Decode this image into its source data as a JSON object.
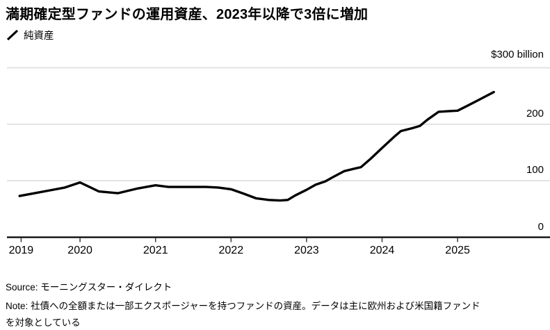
{
  "title": "満期確定型ファンドの運用資産、2023年以降で3倍に増加",
  "legend": {
    "items": [
      {
        "label": "純資産",
        "icon": "diagonal-line",
        "color": "#000000"
      }
    ]
  },
  "chart_data": {
    "type": "line",
    "title": "満期確定型ファンドの運用資産、2023年以降で3倍に増加",
    "ylabel": "$300 billion",
    "ylim": [
      0,
      300
    ],
    "grid": "horizontal",
    "legend_position": "top-left",
    "colors": {
      "line": "#000000",
      "grid": "#e3e3e3",
      "axis": "#000000",
      "tick": "#3a3a3a"
    },
    "y_ticks": [
      {
        "label": "0",
        "value": 0
      },
      {
        "label": "100",
        "value": 100
      },
      {
        "label": "200",
        "value": 200
      },
      {
        "label": "$300 billion",
        "value": 300
      }
    ],
    "x_ticks": [
      {
        "label": "2019",
        "year": 2019.22
      },
      {
        "label": "2020",
        "year": 2020
      },
      {
        "label": "2021",
        "year": 2021
      },
      {
        "label": "2022",
        "year": 2022
      },
      {
        "label": "2023",
        "year": 2023
      },
      {
        "label": "2024",
        "year": 2024
      },
      {
        "label": "2025",
        "year": 2025
      }
    ],
    "series": [
      {
        "name": "純資産",
        "unit": "$ billion",
        "points": [
          [
            2019.2,
            73
          ],
          [
            2019.4,
            78
          ],
          [
            2019.6,
            83
          ],
          [
            2019.8,
            88
          ],
          [
            2020.0,
            97
          ],
          [
            2020.25,
            81
          ],
          [
            2020.5,
            78
          ],
          [
            2020.75,
            86
          ],
          [
            2021.0,
            92
          ],
          [
            2021.17,
            89
          ],
          [
            2021.33,
            89
          ],
          [
            2021.5,
            89
          ],
          [
            2021.67,
            89
          ],
          [
            2021.83,
            88
          ],
          [
            2022.0,
            85
          ],
          [
            2022.17,
            77
          ],
          [
            2022.33,
            69
          ],
          [
            2022.5,
            66
          ],
          [
            2022.65,
            65
          ],
          [
            2022.75,
            66
          ],
          [
            2022.85,
            74
          ],
          [
            2023.0,
            84
          ],
          [
            2023.12,
            93
          ],
          [
            2023.25,
            99
          ],
          [
            2023.37,
            108
          ],
          [
            2023.5,
            117
          ],
          [
            2023.62,
            121
          ],
          [
            2023.72,
            124
          ],
          [
            2023.85,
            139
          ],
          [
            2024.0,
            158
          ],
          [
            2024.17,
            179
          ],
          [
            2024.25,
            188
          ],
          [
            2024.4,
            193
          ],
          [
            2024.5,
            197
          ],
          [
            2024.6,
            208
          ],
          [
            2024.75,
            222
          ],
          [
            2024.87,
            223
          ],
          [
            2025.0,
            224
          ],
          [
            2025.12,
            232
          ],
          [
            2025.25,
            241
          ],
          [
            2025.48,
            257
          ]
        ]
      }
    ]
  },
  "footer": {
    "source": "Source: モーニングスター・ダイレクト",
    "note_line1": "Note: 社債への全額または一部エクスポージャーを持つファンドの資産。データは主に欧州および米国籍ファンド",
    "note_line2": "を対象としている"
  }
}
